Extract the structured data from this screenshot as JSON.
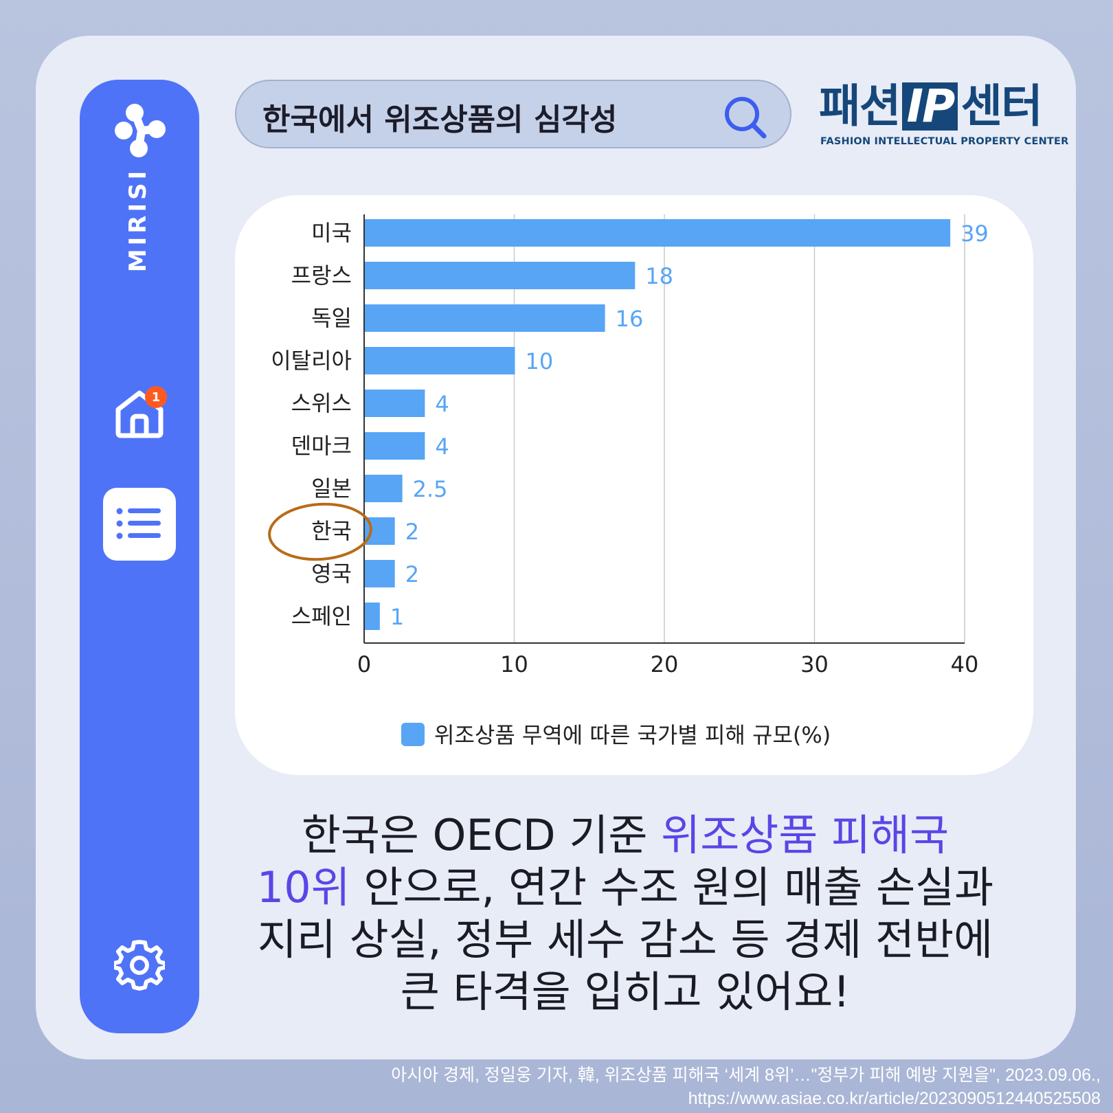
{
  "search": {
    "text": "한국에서 위조상품의 심각성"
  },
  "logo": {
    "ko_left": "패션",
    "ip": "IP",
    "ko_right": "센터",
    "en": "FASHION INTELLECTUAL PROPERTY CENTER"
  },
  "sidebar": {
    "brand": "MIRISI",
    "home_badge": "1"
  },
  "colors": {
    "bar": "#57a5f4",
    "accent": "#5b45e6",
    "sidebar": "#4f73f7",
    "highlight_circle": "#b86b18"
  },
  "chart_data": {
    "type": "bar",
    "orientation": "horizontal",
    "categories": [
      "미국",
      "프랑스",
      "독일",
      "이탈리아",
      "스위스",
      "덴마크",
      "일본",
      "한국",
      "영국",
      "스페인"
    ],
    "series": [
      {
        "name": "위조상품 무역에 따른 국가별 피해 규모(%)",
        "values": [
          39,
          18,
          16,
          10,
          4,
          4,
          2.5,
          2,
          2,
          1
        ]
      }
    ],
    "data_labels": [
      "39",
      "18",
      "16",
      "10",
      "4",
      "4",
      "2.5",
      "2",
      "2",
      "1"
    ],
    "xticks": [
      "0",
      "10",
      "20",
      "30",
      "40"
    ],
    "xlim": [
      0,
      40
    ],
    "grid": true,
    "legend": "bottom",
    "highlighted_category": "한국"
  },
  "caption": {
    "l1a": "한국은 OECD 기준 ",
    "l1b": "위조상품 피해국",
    "l2a": "10위",
    "l2b": " 안으로, 연간 수조 원의 매출 손실과",
    "l3": "지리 상실, 정부 세수 감소 등 경제 전반에",
    "l4": "큰 타격을 입히고 있어요!"
  },
  "source": {
    "line1": "아시아 경제, 정일웅 기자, 韓, 위조상품 피해국 ‘세계 8위’…\"정부가 피해 예방 지원을\", 2023.09.06.,",
    "line2": "https://www.asiae.co.kr/article/2023090512440525508"
  }
}
